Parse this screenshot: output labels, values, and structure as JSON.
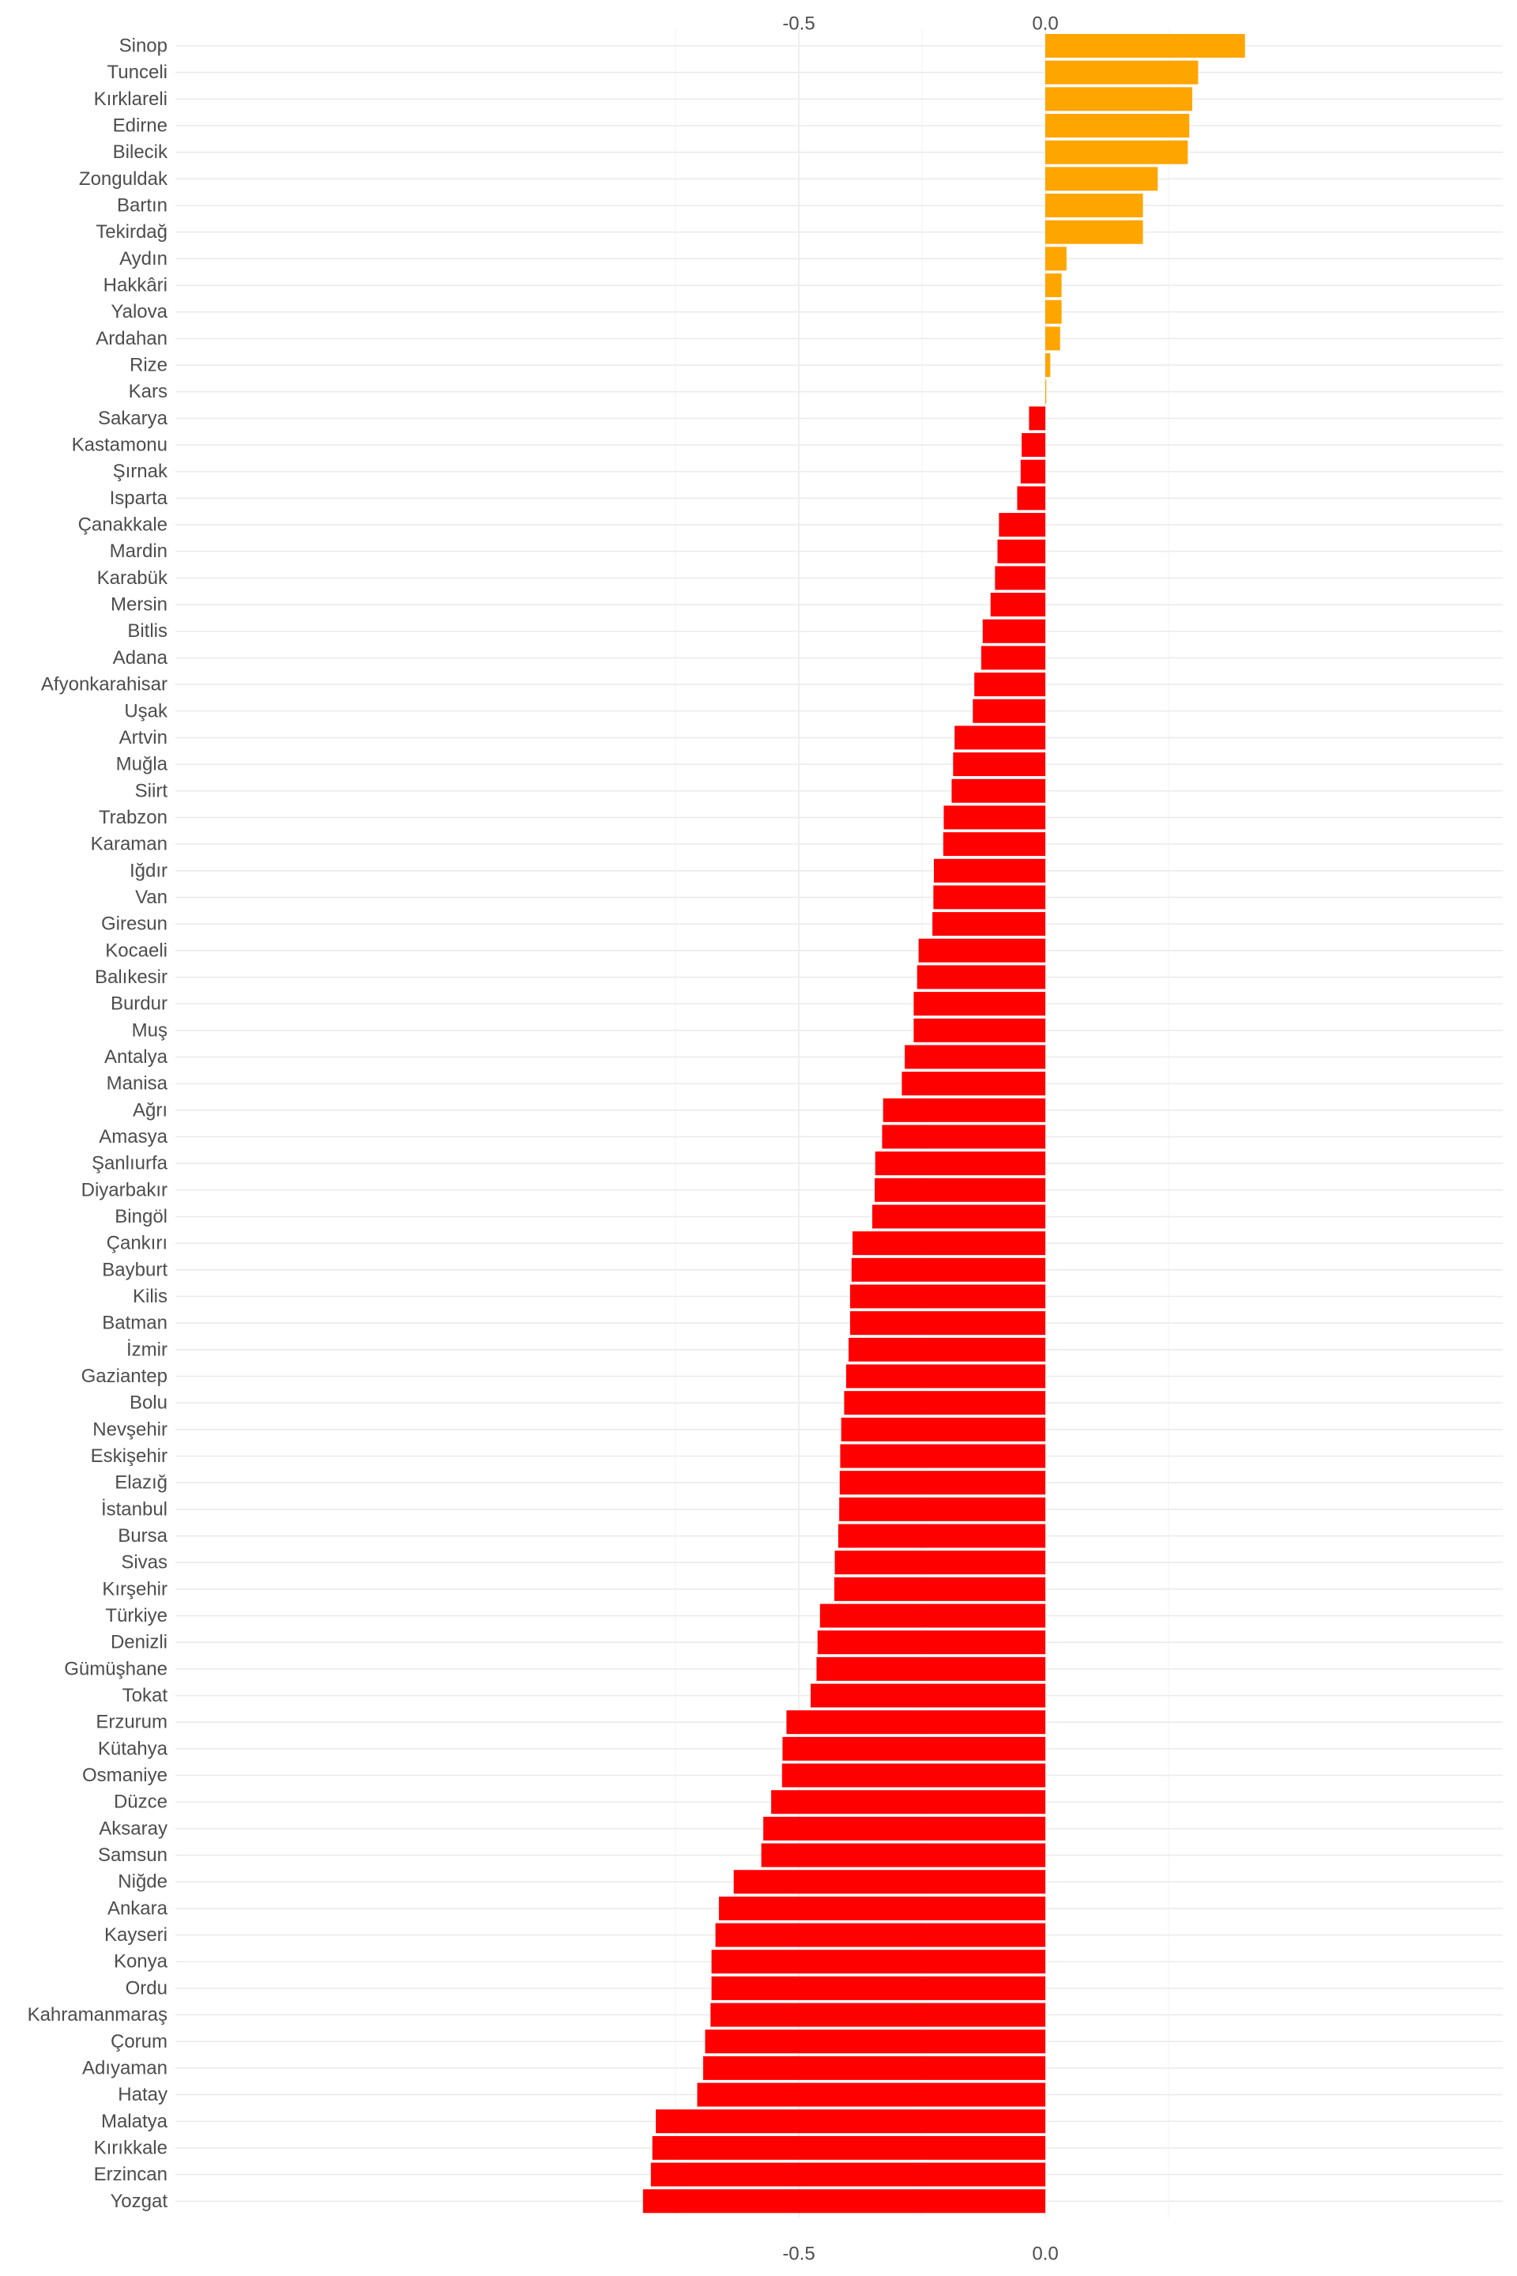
{
  "chart_data": {
    "type": "bar",
    "orientation": "horizontal",
    "title": "",
    "xlabel": "",
    "ylabel": "",
    "xlim": [
      -0.885,
      0.46
    ],
    "x_ticks": [
      -0.5,
      0.0
    ],
    "x_tick_labels": [
      "-0.5",
      "0.0"
    ],
    "x_axis_position": "top-and-bottom",
    "grid": true,
    "legend": "none",
    "colors": {
      "positive": "#FFA500",
      "negative": "#FF0000",
      "grid": "#EBEBEB",
      "text": "#4D4D4D"
    },
    "categories": [
      "Sinop",
      "Tunceli",
      "Kırklareli",
      "Edirne",
      "Bilecik",
      "Zonguldak",
      "Bartın",
      "Tekirdağ",
      "Aydın",
      "Hakkâri",
      "Yalova",
      "Ardahan",
      "Rize",
      "Kars",
      "Sakarya",
      "Kastamonu",
      "Şırnak",
      "Isparta",
      "Çanakkale",
      "Mardin",
      "Karabük",
      "Mersin",
      "Bitlis",
      "Adana",
      "Afyonkarahisar",
      "Uşak",
      "Artvin",
      "Muğla",
      "Siirt",
      "Trabzon",
      "Karaman",
      "Iğdır",
      "Van",
      "Giresun",
      "Kocaeli",
      "Balıkesir",
      "Burdur",
      "Muş",
      "Antalya",
      "Manisa",
      "Ağrı",
      "Amasya",
      "Şanlıurfa",
      "Diyarbakır",
      "Bingöl",
      "Çankırı",
      "Bayburt",
      "Kilis",
      "Batman",
      "İzmir",
      "Gaziantep",
      "Bolu",
      "Nevşehir",
      "Eskişehir",
      "Elazığ",
      "İstanbul",
      "Bursa",
      "Sivas",
      "Kırşehir",
      "Türkiye",
      "Denizli",
      "Gümüşhane",
      "Tokat",
      "Erzurum",
      "Kütahya",
      "Osmaniye",
      "Düzce",
      "Aksaray",
      "Samsun",
      "Niğde",
      "Ankara",
      "Kayseri",
      "Konya",
      "Ordu",
      "Kahramanmaraş",
      "Çorum",
      "Adıyaman",
      "Hatay",
      "Malatya",
      "Kırıkkale",
      "Erzincan",
      "Yozgat"
    ],
    "values": [
      0.405,
      0.31,
      0.298,
      0.292,
      0.289,
      0.228,
      0.198,
      0.198,
      0.043,
      0.033,
      0.033,
      0.03,
      0.01,
      0.002,
      -0.033,
      -0.048,
      -0.05,
      -0.057,
      -0.094,
      -0.097,
      -0.102,
      -0.111,
      -0.127,
      -0.13,
      -0.144,
      -0.147,
      -0.184,
      -0.187,
      -0.19,
      -0.206,
      -0.207,
      -0.226,
      -0.227,
      -0.229,
      -0.257,
      -0.26,
      -0.267,
      -0.267,
      -0.285,
      -0.291,
      -0.329,
      -0.331,
      -0.345,
      -0.346,
      -0.351,
      -0.391,
      -0.393,
      -0.396,
      -0.396,
      -0.399,
      -0.404,
      -0.408,
      -0.414,
      -0.416,
      -0.417,
      -0.418,
      -0.42,
      -0.427,
      -0.428,
      -0.457,
      -0.462,
      -0.464,
      -0.476,
      -0.525,
      -0.533,
      -0.534,
      -0.556,
      -0.572,
      -0.576,
      -0.632,
      -0.662,
      -0.669,
      -0.677,
      -0.677,
      -0.679,
      -0.69,
      -0.694,
      -0.706,
      -0.79,
      -0.797,
      -0.8,
      -0.816
    ]
  }
}
